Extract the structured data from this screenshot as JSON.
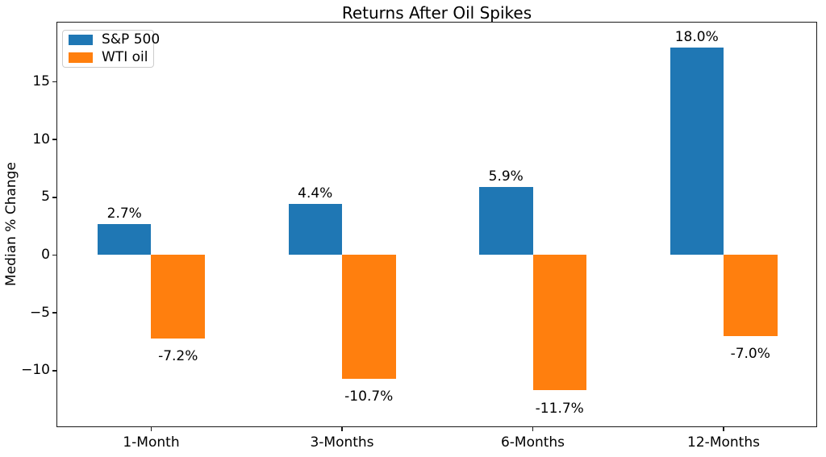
{
  "chart_data": {
    "type": "bar",
    "title": "Returns After Oil Spikes",
    "ylabel": "Median % Change",
    "xlabel": "",
    "categories": [
      "1-Month",
      "3-Months",
      "6-Months",
      "12-Months"
    ],
    "series": [
      {
        "name": "S&P 500",
        "color": "#1f77b4",
        "values": [
          2.7,
          4.4,
          5.9,
          18.0
        ],
        "labels": [
          "2.7%",
          "4.4%",
          "5.9%",
          "18.0%"
        ]
      },
      {
        "name": "WTI oil",
        "color": "#ff7f0e",
        "values": [
          -7.2,
          -10.7,
          -11.7,
          -7.0
        ],
        "labels": [
          "-7.2%",
          "-10.7%",
          "-11.7%",
          "-7.0%"
        ]
      }
    ],
    "yticks": [
      15,
      10,
      5,
      0,
      -5,
      -10
    ],
    "ytick_labels": [
      "15",
      "10",
      "5",
      "0",
      "−5",
      "−10"
    ],
    "ylim": [
      -14.9,
      20.2
    ],
    "legend_position": "upper left",
    "grid": false
  }
}
